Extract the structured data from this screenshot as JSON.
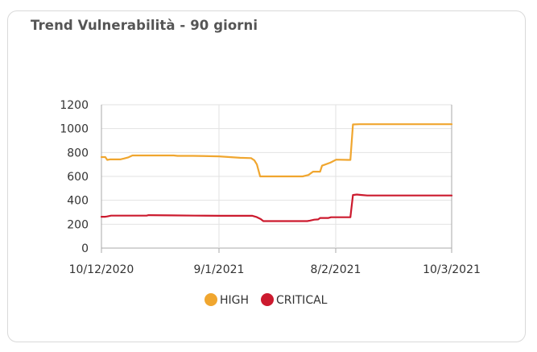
{
  "card": {
    "title": "Trend Vulnerabilità - 90 giorni"
  },
  "chart_data": {
    "type": "line",
    "title": "Trend Vulnerabilità - 90 giorni",
    "xlabel": "",
    "ylabel": "",
    "ylim": [
      0,
      1200
    ],
    "y_ticks": [
      "0",
      "200",
      "400",
      "600",
      "800",
      "1000",
      "1200"
    ],
    "x_ticks": [
      "10/12/2020",
      "9/1/2021",
      "8/2/2021",
      "10/3/2021"
    ],
    "grid": true,
    "legend_position": "bottom",
    "series": [
      {
        "name": "HIGH",
        "color": "#f0a62f",
        "points": [
          [
            0,
            762
          ],
          [
            6,
            762
          ],
          [
            9,
            738
          ],
          [
            13,
            742
          ],
          [
            29,
            742
          ],
          [
            35,
            750
          ],
          [
            42,
            760
          ],
          [
            48,
            775
          ],
          [
            68,
            775
          ],
          [
            112,
            775
          ],
          [
            118,
            772
          ],
          [
            142,
            772
          ],
          [
            182,
            768
          ],
          [
            215,
            756
          ],
          [
            232,
            753
          ],
          [
            237,
            735
          ],
          [
            241,
            700
          ],
          [
            246,
            600
          ],
          [
            256,
            600
          ],
          [
            288,
            600
          ],
          [
            312,
            600
          ],
          [
            321,
            612
          ],
          [
            328,
            640
          ],
          [
            339,
            640
          ],
          [
            342,
            690
          ],
          [
            355,
            715
          ],
          [
            364,
            740
          ],
          [
            382,
            738
          ],
          [
            386,
            738
          ],
          [
            390,
            1035
          ],
          [
            400,
            1037
          ],
          [
            470,
            1037
          ],
          [
            543,
            1037
          ]
        ]
      },
      {
        "name": "CRITICAL",
        "color": "#cc1a2e",
        "points": [
          [
            0,
            262
          ],
          [
            6,
            262
          ],
          [
            9,
            265
          ],
          [
            15,
            272
          ],
          [
            70,
            272
          ],
          [
            73,
            276
          ],
          [
            108,
            274
          ],
          [
            145,
            272
          ],
          [
            183,
            270
          ],
          [
            234,
            270
          ],
          [
            240,
            261
          ],
          [
            247,
            243
          ],
          [
            251,
            226
          ],
          [
            260,
            226
          ],
          [
            319,
            226
          ],
          [
            323,
            230
          ],
          [
            330,
            238
          ],
          [
            336,
            240
          ],
          [
            339,
            252
          ],
          [
            352,
            252
          ],
          [
            356,
            258
          ],
          [
            382,
            258
          ],
          [
            386,
            258
          ],
          [
            390,
            444
          ],
          [
            396,
            448
          ],
          [
            402,
            445
          ],
          [
            412,
            440
          ],
          [
            520,
            440
          ],
          [
            543,
            440
          ]
        ]
      }
    ]
  }
}
